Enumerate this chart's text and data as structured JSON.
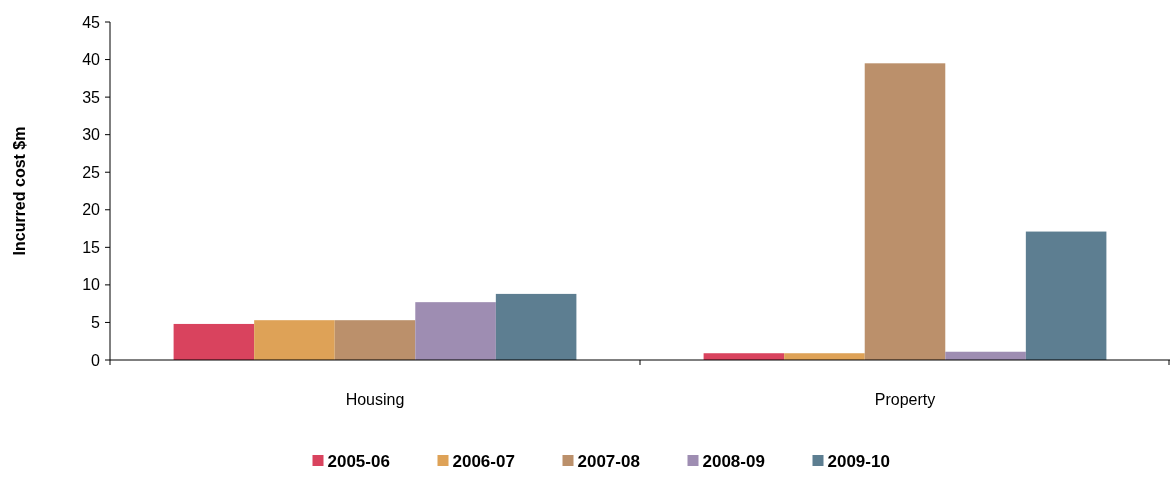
{
  "chart_data": {
    "type": "bar",
    "ylabel": "Incurred cost $m",
    "categories": [
      "Housing",
      "Property"
    ],
    "series": [
      {
        "name": "2005-06",
        "color": "#d9435e",
        "values": [
          4.8,
          0.9
        ]
      },
      {
        "name": "2006-07",
        "color": "#dea257",
        "values": [
          5.3,
          0.9
        ]
      },
      {
        "name": "2007-08",
        "color": "#bb906b",
        "values": [
          5.3,
          39.5
        ]
      },
      {
        "name": "2008-09",
        "color": "#9e8db2",
        "values": [
          7.7,
          1.1
        ]
      },
      {
        "name": "2009-10",
        "color": "#5d7e91",
        "values": [
          8.8,
          17.1
        ]
      }
    ],
    "ylim": [
      0,
      45
    ],
    "yticks": [
      0,
      5,
      10,
      15,
      20,
      25,
      30,
      35,
      40,
      45
    ],
    "legend": "bottom",
    "grid": false
  }
}
